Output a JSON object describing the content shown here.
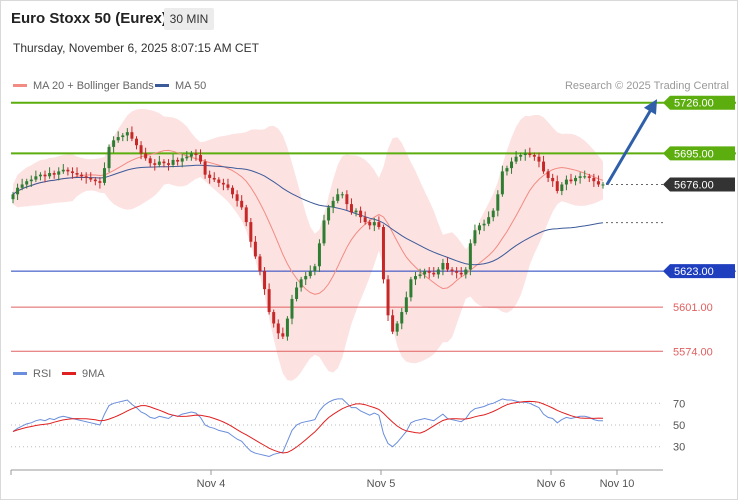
{
  "header": {
    "title": "Euro Stoxx 50 (Eurex)",
    "timeframe": "30 MIN",
    "datetime": "Thursday, November 6, 2025 8:07:15 AM CET",
    "credit": "Research © 2025 Trading Central"
  },
  "legend": [
    {
      "label": "MA 20 + Bollinger Bands",
      "color": "#f28b82"
    },
    {
      "label": "MA 50",
      "color": "#3c5a99"
    }
  ],
  "rsi_legend": [
    {
      "label": "RSI",
      "color": "#6a8edb"
    },
    {
      "label": "9MA",
      "color": "#e02020"
    }
  ],
  "colors": {
    "up": "#2e7d32",
    "down": "#c62828",
    "resistance": "#5cae0f",
    "pivot": "#1f3fbf",
    "support": "#e06060",
    "bollinger": "#fde2e2",
    "ma20": "#f28b82",
    "ma50": "#3c5a99",
    "arrow": "#2f5fa8",
    "current": "#333333"
  },
  "chart_data": {
    "type": "candlestick",
    "x_ticks": [
      "Nov 4",
      "Nov 5",
      "Nov 6",
      "Nov 10"
    ],
    "ylim": [
      5565,
      5735
    ],
    "current_price": 5676.0,
    "levels": [
      {
        "value": 5726.0,
        "label": "5726.00",
        "kind": "resistance"
      },
      {
        "value": 5695.0,
        "label": "5695.00",
        "kind": "resistance"
      },
      {
        "value": 5676.0,
        "label": "5676.00",
        "kind": "current"
      },
      {
        "value": 5623.0,
        "label": "5623.00",
        "kind": "pivot"
      },
      {
        "value": 5601.0,
        "label": "5601.00",
        "kind": "support"
      },
      {
        "value": 5574.0,
        "label": "5574.00",
        "kind": "support"
      }
    ],
    "target_projection": {
      "from": 5676,
      "to": 5725
    },
    "close": [
      5670,
      5674,
      5676,
      5678,
      5679,
      5681,
      5682,
      5681,
      5683,
      5682,
      5684,
      5685,
      5684,
      5683,
      5682,
      5681,
      5680,
      5679,
      5678,
      5677,
      5686,
      5699,
      5703,
      5705,
      5706,
      5708,
      5704,
      5700,
      5695,
      5692,
      5689,
      5688,
      5690,
      5689,
      5688,
      5691,
      5690,
      5692,
      5693,
      5695,
      5694,
      5690,
      5682,
      5680,
      5679,
      5677,
      5676,
      5674,
      5670,
      5666,
      5662,
      5653,
      5641,
      5632,
      5623,
      5612,
      5598,
      5591,
      5585,
      5583,
      5594,
      5606,
      5613,
      5618,
      5620,
      5623,
      5626,
      5640,
      5654,
      5662,
      5666,
      5670,
      5670,
      5664,
      5659,
      5660,
      5656,
      5653,
      5651,
      5653,
      5650,
      5618,
      5596,
      5586,
      5591,
      5598,
      5607,
      5618,
      5620,
      5621,
      5623,
      5622,
      5621,
      5624,
      5628,
      5624,
      5623,
      5622,
      5621,
      5624,
      5640,
      5648,
      5651,
      5652,
      5656,
      5660,
      5670,
      5684,
      5686,
      5690,
      5693,
      5694,
      5695,
      5694,
      5693,
      5690,
      5684,
      5680,
      5678,
      5672,
      5676,
      5679,
      5678,
      5680,
      5681,
      5681,
      5680,
      5678,
      5676,
      5676
    ],
    "rsi": [
      44,
      47,
      49,
      51,
      52,
      54,
      55,
      54,
      56,
      55,
      57,
      58,
      57,
      56,
      55,
      54,
      53,
      52,
      51,
      50,
      60,
      68,
      70,
      71,
      72,
      73,
      69,
      66,
      62,
      60,
      57,
      56,
      58,
      57,
      56,
      59,
      58,
      60,
      61,
      62,
      61,
      57,
      50,
      48,
      47,
      45,
      44,
      43,
      40,
      37,
      35,
      30,
      26,
      24,
      23,
      22,
      21,
      23,
      24,
      25,
      35,
      45,
      50,
      52,
      53,
      54,
      55,
      63,
      68,
      71,
      73,
      74,
      74,
      70,
      66,
      66,
      63,
      61,
      59,
      61,
      59,
      42,
      33,
      30,
      34,
      39,
      44,
      52,
      54,
      55,
      56,
      55,
      54,
      57,
      60,
      56,
      55,
      54,
      53,
      56,
      62,
      65,
      66,
      67,
      69,
      70,
      72,
      74,
      73,
      73,
      72,
      71,
      71,
      70,
      68,
      66,
      60,
      57,
      56,
      52,
      55,
      57,
      56,
      57,
      58,
      58,
      57,
      55,
      54,
      54
    ],
    "rsi_ylim": [
      15,
      85
    ],
    "rsi_ticks": [
      70,
      50,
      30
    ]
  }
}
